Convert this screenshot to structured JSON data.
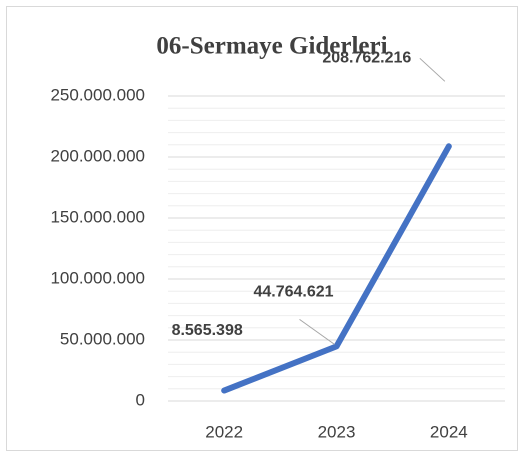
{
  "chart_data": {
    "type": "line",
    "title": "06-Sermaye Giderleri",
    "categories": [
      "2022",
      "2023",
      "2024"
    ],
    "series": [
      {
        "name": "06-Sermaye Giderleri",
        "color": "#4472c4",
        "values": [
          8565398,
          44764621,
          208762216
        ],
        "value_labels": [
          "8.565.398",
          "44.764.621",
          "208.762.216"
        ]
      }
    ],
    "ylim": [
      0,
      250000000
    ],
    "yticks": [
      0,
      {
        "value": 50000000,
        "label": "50.000.000"
      },
      {
        "value": 100000000,
        "label": "100.000.000"
      },
      {
        "value": 150000000,
        "label": "150.000.000"
      },
      {
        "value": 200000000,
        "label": "200.000.000"
      },
      {
        "value": 250000000,
        "label": "250.000.000"
      }
    ],
    "minor_yticks": [
      10000000,
      20000000,
      30000000,
      40000000,
      60000000,
      70000000,
      80000000,
      90000000,
      110000000,
      120000000,
      130000000,
      140000000,
      160000000,
      170000000,
      180000000,
      190000000,
      210000000,
      220000000,
      230000000,
      240000000
    ],
    "grid": true
  }
}
